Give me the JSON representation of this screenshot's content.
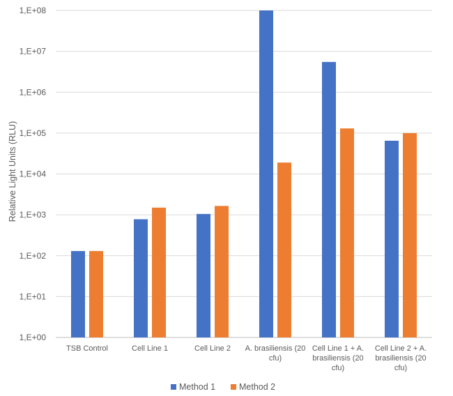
{
  "chart_data": {
    "type": "bar",
    "scale": "log10",
    "ylim": [
      1,
      100000000
    ],
    "ylabel": "Relative Light Units (RLU)",
    "xlabel": "",
    "grid": true,
    "legend_position": "bottom",
    "y_tick_labels": [
      "1,E+00",
      "1,E+01",
      "1,E+02",
      "1,E+03",
      "1,E+04",
      "1,E+05",
      "1,E+06",
      "1,E+07",
      "1,E+08"
    ],
    "categories": [
      [
        "TSB Control"
      ],
      [
        "Cell Line 1"
      ],
      [
        "Cell Line 2"
      ],
      [
        "A. brasiliensis (20",
        "cfu)"
      ],
      [
        "Cell Line 1 + A.",
        "brasiliensis (20",
        "cfu)"
      ],
      [
        "Cell Line 2 + A.",
        "brasiliensis (20",
        "cfu)"
      ]
    ],
    "series": [
      {
        "name": "Method 1",
        "color": "#4472C4",
        "values": [
          130,
          780,
          1050,
          100000000,
          5500000,
          65000
        ]
      },
      {
        "name": "Method 2",
        "color": "#ED7D31",
        "values": [
          130,
          1500,
          1650,
          19000,
          130000,
          100000
        ]
      }
    ]
  }
}
